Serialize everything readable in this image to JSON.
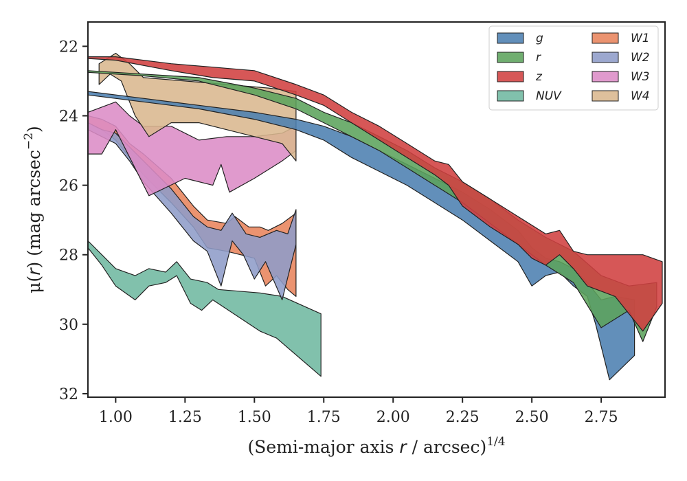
{
  "chart_data": {
    "type": "area",
    "xlabel_main": "(Semi-major axis ",
    "xlabel_var": "r",
    "xlabel_tail": " / arcsec)",
    "xlabel_exp": "1/4",
    "ylabel_main": "μ(",
    "ylabel_var": "r",
    "ylabel_tail": ") (mag arcsec",
    "ylabel_exp": "−2",
    "ylabel_close": ")",
    "xlim": [
      0.9,
      2.98
    ],
    "ylim": [
      32.1,
      21.3
    ],
    "y_inverted": true,
    "grid": false,
    "legend_position": "top-right",
    "xticks": [
      1.0,
      1.25,
      1.5,
      1.75,
      2.0,
      2.25,
      2.5,
      2.75
    ],
    "xtick_labels": [
      "1.00",
      "1.25",
      "1.50",
      "1.75",
      "2.00",
      "2.25",
      "2.50",
      "2.75"
    ],
    "yticks": [
      22,
      24,
      26,
      28,
      30,
      32
    ],
    "ytick_labels": [
      "22",
      "24",
      "26",
      "28",
      "30",
      "32"
    ],
    "series": [
      {
        "name": "NUV",
        "color": "#6fb8a0",
        "upper": [
          [
            0.9,
            27.6
          ],
          [
            0.95,
            28.0
          ],
          [
            1.0,
            28.4
          ],
          [
            1.07,
            28.6
          ],
          [
            1.12,
            28.4
          ],
          [
            1.18,
            28.5
          ],
          [
            1.22,
            28.2
          ],
          [
            1.27,
            28.7
          ],
          [
            1.33,
            28.8
          ],
          [
            1.37,
            29.0
          ],
          [
            1.52,
            29.1
          ],
          [
            1.6,
            29.2
          ],
          [
            1.74,
            29.7
          ]
        ],
        "lower": [
          [
            0.9,
            27.8
          ],
          [
            0.95,
            28.3
          ],
          [
            1.0,
            28.9
          ],
          [
            1.07,
            29.3
          ],
          [
            1.12,
            28.9
          ],
          [
            1.18,
            28.8
          ],
          [
            1.22,
            28.6
          ],
          [
            1.27,
            29.4
          ],
          [
            1.31,
            29.6
          ],
          [
            1.35,
            29.3
          ],
          [
            1.52,
            30.2
          ],
          [
            1.58,
            30.4
          ],
          [
            1.74,
            31.5
          ]
        ]
      },
      {
        "name": "W1",
        "color": "#e8845c",
        "upper": [
          [
            0.9,
            24.0
          ],
          [
            0.95,
            24.1
          ],
          [
            1.0,
            24.3
          ],
          [
            1.05,
            24.8
          ],
          [
            1.1,
            25.1
          ],
          [
            1.2,
            25.8
          ],
          [
            1.28,
            26.6
          ],
          [
            1.33,
            27.0
          ],
          [
            1.4,
            27.1
          ],
          [
            1.43,
            26.9
          ],
          [
            1.48,
            27.2
          ],
          [
            1.52,
            27.2
          ],
          [
            1.55,
            27.3
          ],
          [
            1.6,
            27.1
          ],
          [
            1.65,
            26.8
          ]
        ],
        "lower": [
          [
            0.9,
            24.2
          ],
          [
            0.95,
            24.4
          ],
          [
            1.0,
            24.7
          ],
          [
            1.05,
            25.2
          ],
          [
            1.1,
            25.7
          ],
          [
            1.2,
            26.5
          ],
          [
            1.28,
            27.2
          ],
          [
            1.33,
            27.8
          ],
          [
            1.4,
            27.9
          ],
          [
            1.45,
            28.0
          ],
          [
            1.5,
            28.1
          ],
          [
            1.54,
            28.9
          ],
          [
            1.58,
            28.6
          ],
          [
            1.62,
            29.0
          ],
          [
            1.65,
            29.2
          ]
        ]
      },
      {
        "name": "W2",
        "color": "#8e9cc8",
        "upper": [
          [
            0.9,
            24.2
          ],
          [
            0.95,
            24.4
          ],
          [
            1.0,
            24.5
          ],
          [
            1.05,
            24.9
          ],
          [
            1.1,
            25.3
          ],
          [
            1.2,
            26.1
          ],
          [
            1.28,
            26.9
          ],
          [
            1.33,
            27.2
          ],
          [
            1.38,
            27.3
          ],
          [
            1.42,
            26.8
          ],
          [
            1.47,
            27.4
          ],
          [
            1.52,
            27.5
          ],
          [
            1.58,
            27.3
          ],
          [
            1.62,
            27.4
          ],
          [
            1.65,
            26.7
          ]
        ],
        "lower": [
          [
            0.9,
            24.4
          ],
          [
            0.95,
            24.6
          ],
          [
            1.0,
            24.8
          ],
          [
            1.05,
            25.3
          ],
          [
            1.1,
            25.9
          ],
          [
            1.2,
            26.8
          ],
          [
            1.28,
            27.6
          ],
          [
            1.33,
            27.9
          ],
          [
            1.38,
            28.9
          ],
          [
            1.42,
            27.6
          ],
          [
            1.46,
            28.0
          ],
          [
            1.5,
            28.7
          ],
          [
            1.54,
            28.2
          ],
          [
            1.6,
            29.3
          ],
          [
            1.65,
            27.7
          ]
        ]
      },
      {
        "name": "W3",
        "color": "#dc8cc6",
        "upper": [
          [
            0.9,
            23.9
          ],
          [
            1.0,
            23.6
          ],
          [
            1.05,
            24.0
          ],
          [
            1.1,
            24.3
          ],
          [
            1.2,
            24.3
          ],
          [
            1.25,
            24.5
          ],
          [
            1.3,
            24.7
          ],
          [
            1.4,
            24.6
          ],
          [
            1.5,
            24.6
          ],
          [
            1.6,
            24.5
          ],
          [
            1.65,
            24.3
          ]
        ],
        "lower": [
          [
            0.9,
            25.1
          ],
          [
            0.95,
            25.1
          ],
          [
            1.0,
            24.4
          ],
          [
            1.12,
            26.3
          ],
          [
            1.25,
            25.8
          ],
          [
            1.35,
            26.0
          ],
          [
            1.38,
            25.4
          ],
          [
            1.41,
            26.2
          ],
          [
            1.5,
            25.8
          ],
          [
            1.6,
            25.3
          ],
          [
            1.65,
            25.0
          ]
        ]
      },
      {
        "name": "W4",
        "color": "#d9b78e",
        "upper": [
          [
            0.94,
            22.5
          ],
          [
            1.0,
            22.2
          ],
          [
            1.05,
            22.5
          ],
          [
            1.1,
            22.9
          ],
          [
            1.25,
            23.0
          ],
          [
            1.4,
            23.1
          ],
          [
            1.55,
            23.2
          ],
          [
            1.65,
            23.3
          ]
        ],
        "lower": [
          [
            0.94,
            23.1
          ],
          [
            0.98,
            22.8
          ],
          [
            1.02,
            23.0
          ],
          [
            1.07,
            24.0
          ],
          [
            1.12,
            24.6
          ],
          [
            1.2,
            24.2
          ],
          [
            1.3,
            24.2
          ],
          [
            1.4,
            24.4
          ],
          [
            1.5,
            24.6
          ],
          [
            1.6,
            24.8
          ],
          [
            1.65,
            25.3
          ]
        ]
      },
      {
        "name": "g",
        "color": "#4c7fb0",
        "upper": [
          [
            0.9,
            23.3
          ],
          [
            1.1,
            23.5
          ],
          [
            1.3,
            23.7
          ],
          [
            1.5,
            23.9
          ],
          [
            1.65,
            24.1
          ],
          [
            1.75,
            24.3
          ],
          [
            1.85,
            24.6
          ],
          [
            1.95,
            25.0
          ],
          [
            2.05,
            25.4
          ],
          [
            2.15,
            25.8
          ],
          [
            2.25,
            26.2
          ],
          [
            2.35,
            26.7
          ],
          [
            2.45,
            27.3
          ],
          [
            2.5,
            27.8
          ],
          [
            2.55,
            28.1
          ],
          [
            2.6,
            28.2
          ],
          [
            2.65,
            28.4
          ],
          [
            2.7,
            28.8
          ],
          [
            2.75,
            29.3
          ],
          [
            2.8,
            29.2
          ],
          [
            2.87,
            29.3
          ]
        ],
        "lower": [
          [
            0.9,
            23.4
          ],
          [
            1.1,
            23.6
          ],
          [
            1.3,
            23.8
          ],
          [
            1.5,
            24.1
          ],
          [
            1.65,
            24.4
          ],
          [
            1.75,
            24.7
          ],
          [
            1.85,
            25.2
          ],
          [
            1.95,
            25.6
          ],
          [
            2.05,
            26.0
          ],
          [
            2.15,
            26.5
          ],
          [
            2.25,
            27.0
          ],
          [
            2.35,
            27.6
          ],
          [
            2.45,
            28.2
          ],
          [
            2.5,
            28.9
          ],
          [
            2.55,
            28.6
          ],
          [
            2.6,
            28.5
          ],
          [
            2.65,
            28.9
          ],
          [
            2.7,
            29.2
          ],
          [
            2.73,
            30.0
          ],
          [
            2.78,
            31.6
          ],
          [
            2.87,
            30.9
          ]
        ]
      },
      {
        "name": "r",
        "color": "#5ca35c",
        "upper": [
          [
            0.9,
            22.7
          ],
          [
            1.1,
            22.8
          ],
          [
            1.3,
            22.9
          ],
          [
            1.5,
            23.2
          ],
          [
            1.65,
            23.5
          ],
          [
            1.75,
            23.9
          ],
          [
            1.85,
            24.2
          ],
          [
            1.95,
            24.6
          ],
          [
            2.05,
            25.0
          ],
          [
            2.15,
            25.5
          ],
          [
            2.25,
            25.9
          ],
          [
            2.35,
            26.4
          ],
          [
            2.45,
            27.0
          ],
          [
            2.55,
            27.5
          ],
          [
            2.65,
            27.9
          ],
          [
            2.75,
            28.6
          ],
          [
            2.85,
            28.9
          ],
          [
            2.95,
            28.8
          ]
        ],
        "lower": [
          [
            0.9,
            22.75
          ],
          [
            1.1,
            22.85
          ],
          [
            1.3,
            23.0
          ],
          [
            1.5,
            23.4
          ],
          [
            1.65,
            23.8
          ],
          [
            1.75,
            24.2
          ],
          [
            1.85,
            24.6
          ],
          [
            1.95,
            25.0
          ],
          [
            2.05,
            25.5
          ],
          [
            2.15,
            26.0
          ],
          [
            2.25,
            26.5
          ],
          [
            2.35,
            27.1
          ],
          [
            2.45,
            27.7
          ],
          [
            2.55,
            28.3
          ],
          [
            2.65,
            28.8
          ],
          [
            2.75,
            30.1
          ],
          [
            2.85,
            29.6
          ],
          [
            2.9,
            30.5
          ],
          [
            2.95,
            29.5
          ]
        ]
      },
      {
        "name": "z",
        "color": "#d04040",
        "upper": [
          [
            0.9,
            22.3
          ],
          [
            1.0,
            22.3
          ],
          [
            1.2,
            22.5
          ],
          [
            1.35,
            22.6
          ],
          [
            1.5,
            22.7
          ],
          [
            1.65,
            23.1
          ],
          [
            1.75,
            23.4
          ],
          [
            1.85,
            23.9
          ],
          [
            1.95,
            24.3
          ],
          [
            2.05,
            24.8
          ],
          [
            2.15,
            25.3
          ],
          [
            2.2,
            25.4
          ],
          [
            2.25,
            25.9
          ],
          [
            2.35,
            26.4
          ],
          [
            2.45,
            26.9
          ],
          [
            2.55,
            27.4
          ],
          [
            2.6,
            27.3
          ],
          [
            2.65,
            27.9
          ],
          [
            2.7,
            28.0
          ],
          [
            2.8,
            28.0
          ],
          [
            2.9,
            28.0
          ],
          [
            2.97,
            28.2
          ]
        ],
        "lower": [
          [
            0.9,
            22.35
          ],
          [
            1.0,
            22.4
          ],
          [
            1.2,
            22.7
          ],
          [
            1.35,
            22.9
          ],
          [
            1.5,
            23.0
          ],
          [
            1.65,
            23.4
          ],
          [
            1.75,
            23.7
          ],
          [
            1.85,
            24.2
          ],
          [
            1.95,
            24.7
          ],
          [
            2.05,
            25.2
          ],
          [
            2.15,
            25.7
          ],
          [
            2.2,
            26.0
          ],
          [
            2.25,
            26.6
          ],
          [
            2.35,
            27.2
          ],
          [
            2.45,
            27.7
          ],
          [
            2.5,
            28.1
          ],
          [
            2.55,
            28.3
          ],
          [
            2.6,
            28.0
          ],
          [
            2.65,
            28.4
          ],
          [
            2.7,
            28.9
          ],
          [
            2.8,
            29.2
          ],
          [
            2.9,
            30.2
          ],
          [
            2.97,
            29.4
          ]
        ]
      }
    ],
    "legend": {
      "col1": [
        "g",
        "r",
        "z",
        "NUV"
      ],
      "col2": [
        "W1",
        "W2",
        "W3",
        "W4"
      ]
    }
  }
}
